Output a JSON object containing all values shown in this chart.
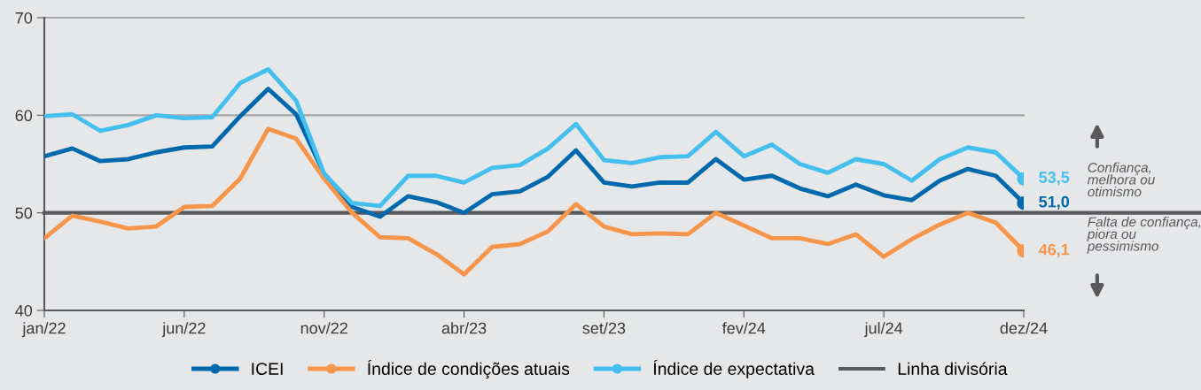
{
  "chart_data": {
    "type": "line",
    "categories": [
      "jan/22",
      null,
      null,
      null,
      null,
      "jun/22",
      null,
      null,
      null,
      null,
      "nov/22",
      null,
      null,
      null,
      null,
      "abr/23",
      null,
      null,
      null,
      null,
      "set/23",
      null,
      null,
      null,
      null,
      "fev/24",
      null,
      null,
      null,
      null,
      "jul/24",
      null,
      null,
      null,
      null,
      "dez/24"
    ],
    "series": [
      {
        "name": "ICEI",
        "color": "#0068ad",
        "values": [
          55.8,
          56.6,
          55.3,
          55.5,
          56.2,
          56.7,
          56.8,
          59.9,
          62.7,
          60.1,
          54.0,
          50.6,
          49.6,
          51.7,
          51.1,
          50.0,
          51.9,
          52.2,
          53.7,
          56.4,
          53.1,
          52.7,
          53.1,
          53.1,
          55.5,
          53.4,
          53.8,
          52.5,
          51.7,
          52.9,
          51.8,
          51.3,
          53.3,
          54.5,
          53.8,
          51.0
        ],
        "value_labels": [
          null,
          null,
          null,
          null,
          null,
          null,
          null,
          null,
          null,
          null,
          null,
          null,
          null,
          null,
          null,
          null,
          null,
          null,
          null,
          null,
          null,
          null,
          null,
          null,
          null,
          null,
          null,
          null,
          null,
          null,
          null,
          null,
          null,
          null,
          null,
          "51,0"
        ]
      },
      {
        "name": "Índice de condições atuais",
        "color": "#f7964a",
        "values": [
          47.4,
          49.7,
          49.1,
          48.4,
          48.6,
          50.6,
          50.7,
          53.5,
          58.6,
          57.6,
          53.5,
          50.0,
          47.5,
          47.4,
          45.8,
          43.7,
          46.5,
          46.8,
          48.1,
          50.9,
          48.6,
          47.8,
          47.9,
          47.8,
          50.0,
          48.7,
          47.4,
          47.4,
          46.8,
          47.8,
          45.5,
          47.3,
          48.8,
          50.0,
          49.0,
          46.1
        ],
        "value_labels": [
          null,
          null,
          null,
          null,
          null,
          null,
          null,
          null,
          null,
          null,
          null,
          null,
          null,
          null,
          null,
          null,
          null,
          null,
          null,
          null,
          null,
          null,
          null,
          null,
          null,
          null,
          null,
          null,
          null,
          null,
          null,
          null,
          null,
          null,
          null,
          "46,1"
        ]
      },
      {
        "name": "Índice de expectativa",
        "color": "#44bfee",
        "values": [
          59.9,
          60.1,
          58.4,
          59.0,
          60.0,
          59.7,
          59.8,
          63.3,
          64.7,
          61.5,
          54.0,
          51.0,
          50.7,
          53.8,
          53.8,
          53.1,
          54.6,
          54.9,
          56.6,
          59.1,
          55.4,
          55.1,
          55.7,
          55.8,
          58.3,
          55.8,
          57.0,
          55.0,
          54.1,
          55.5,
          55.0,
          53.3,
          55.5,
          56.7,
          56.2,
          53.5
        ],
        "value_labels": [
          null,
          null,
          null,
          null,
          null,
          null,
          null,
          null,
          null,
          null,
          null,
          null,
          null,
          null,
          null,
          null,
          null,
          null,
          null,
          null,
          null,
          null,
          null,
          null,
          null,
          null,
          null,
          null,
          null,
          null,
          null,
          null,
          null,
          null,
          null,
          "53,5"
        ]
      }
    ],
    "ref_lines": [
      {
        "axis": "y",
        "value": 50,
        "label": "Linha divisória",
        "color": "#58595b"
      },
      {
        "axis": "y",
        "value": 60,
        "color": "#a6a7a9"
      },
      {
        "axis": "y",
        "value": 70,
        "color": "#a6a7a9"
      }
    ],
    "annotations": [
      "Confiança,\nmelhora ou\notimismo",
      "Falta de confiança,\npiora ou\npessimismo"
    ],
    "ylim": [
      40,
      70
    ],
    "yticks": [
      40,
      50,
      60,
      70
    ],
    "legend": "bottom",
    "line_style": "solid",
    "marker": "none"
  }
}
